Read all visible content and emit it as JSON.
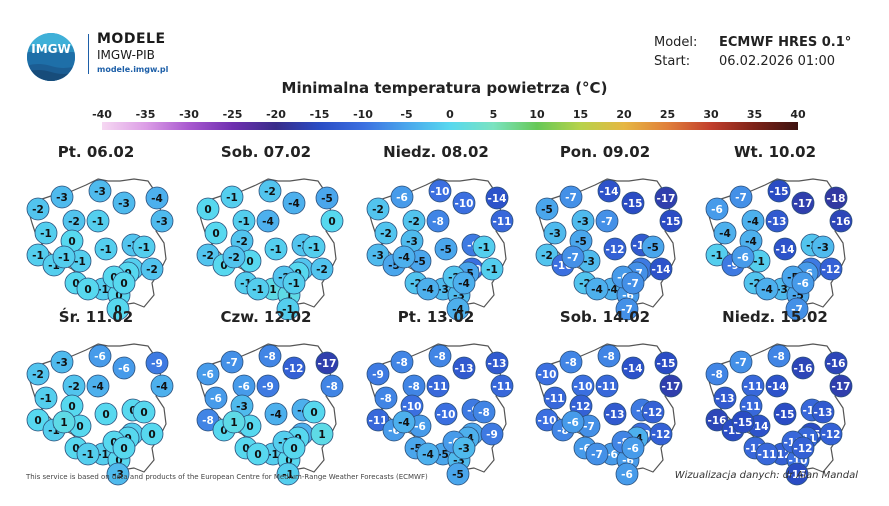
{
  "header": {
    "brand_name": "MODELE",
    "brand_org": "IMGW-PIB",
    "brand_url": "modele.imgw.pl",
    "logo_text": "IMGW",
    "model_label": "Model:",
    "model_value": "ECMWF HRES 0.1°",
    "start_label": "Start:",
    "start_value": "06.02.2026 01:00"
  },
  "title": "Minimalna temperatura powietrza (°C)",
  "scale": {
    "ticks": [
      "-40",
      "-35",
      "-30",
      "-25",
      "-20",
      "-15",
      "-10",
      "-5",
      "0",
      "5",
      "10",
      "15",
      "20",
      "25",
      "30",
      "35",
      "40"
    ],
    "stops": [
      [
        -40,
        "#f6d8f2"
      ],
      [
        -35,
        "#dc9ee6"
      ],
      [
        -30,
        "#a858cf"
      ],
      [
        -25,
        "#6f2fb0"
      ],
      [
        -20,
        "#382c8a"
      ],
      [
        -15,
        "#2a4cc4"
      ],
      [
        -10,
        "#3b6fe0"
      ],
      [
        -5,
        "#4aa6ec"
      ],
      [
        0,
        "#57d8ef"
      ],
      [
        5,
        "#7be3c0"
      ],
      [
        10,
        "#66c857"
      ],
      [
        15,
        "#b7d24a"
      ],
      [
        20,
        "#e6b743"
      ],
      [
        25,
        "#e07f3a"
      ],
      [
        30,
        "#c13e2c"
      ],
      [
        35,
        "#7d2218"
      ],
      [
        40,
        "#3d1210"
      ]
    ]
  },
  "panels": [
    {
      "day": "Pt. 06.02",
      "values": [
        -3,
        -3,
        -2,
        -3,
        -4,
        -2,
        -1,
        -3,
        -1,
        0,
        -1,
        -1,
        -2,
        -1,
        -1,
        -1,
        -2,
        0,
        -1,
        0,
        0,
        0,
        -1,
        -1,
        0,
        0,
        0
      ]
    },
    {
      "day": "Sob. 07.02",
      "values": [
        -1,
        -2,
        0,
        -4,
        -5,
        -1,
        -4,
        0,
        0,
        -2,
        -2,
        -1,
        -2,
        0,
        0,
        -2,
        -2,
        -1,
        1,
        1,
        0,
        -1,
        -2,
        -1,
        -2,
        -1,
        -1
      ]
    },
    {
      "day": "Niedz. 08.02",
      "values": [
        -6,
        -10,
        -2,
        -10,
        -14,
        -2,
        -8,
        -11,
        -2,
        -3,
        -3,
        -5,
        -9,
        -5,
        -5,
        -10,
        -1,
        -2,
        -3,
        -3,
        -5,
        -4,
        -4,
        -1,
        -2,
        -4,
        -4
      ]
    },
    {
      "day": "Pon. 09.02",
      "values": [
        -7,
        -14,
        -5,
        -15,
        -17,
        -3,
        -7,
        -15,
        -3,
        -5,
        -2,
        -12,
        -13,
        -10,
        -3,
        -9,
        -14,
        -2,
        -4,
        -6,
        -7,
        -4,
        -7,
        -5,
        -6,
        -7,
        -7
      ]
    },
    {
      "day": "Wt. 10.02",
      "values": [
        -7,
        -15,
        -6,
        -17,
        -18,
        -4,
        -13,
        -16,
        -4,
        -4,
        -1,
        -14,
        -2,
        -9,
        -1,
        -9,
        -12,
        -2,
        -3,
        -5,
        -6,
        -4,
        -6,
        -3,
        -5,
        -6,
        -7
      ]
    },
    {
      "day": "Śr. 11.02",
      "values": [
        -3,
        -6,
        -2,
        -6,
        -9,
        -2,
        -4,
        -4,
        -1,
        0,
        0,
        0,
        0,
        -1,
        0,
        -1,
        0,
        0,
        -1,
        0,
        0,
        -1,
        1,
        0,
        0,
        0,
        -3
      ]
    },
    {
      "day": "Czw. 12.02",
      "values": [
        -7,
        -8,
        -6,
        -12,
        -17,
        -6,
        -9,
        -8,
        -6,
        -3,
        -8,
        -4,
        -4,
        0,
        0,
        -4,
        1,
        0,
        -1,
        0,
        0,
        0,
        1,
        0,
        -1,
        0,
        -1
      ]
    },
    {
      "day": "Pt. 13.02",
      "values": [
        -8,
        -8,
        -9,
        -13,
        -13,
        -8,
        -11,
        -11,
        -8,
        -10,
        -11,
        -10,
        -9,
        -6,
        -6,
        -5,
        -9,
        -5,
        -5,
        -3,
        -4,
        -4,
        -4,
        -8,
        -6,
        -3,
        -5
      ]
    },
    {
      "day": "Sob. 14.02",
      "values": [
        -8,
        -8,
        -10,
        -14,
        -15,
        -10,
        -11,
        -17,
        -11,
        -12,
        -10,
        -13,
        -9,
        -8,
        -7,
        -10,
        -12,
        -6,
        -6,
        -6,
        -4,
        -7,
        -6,
        -12,
        -8,
        -6,
        -6
      ]
    },
    {
      "day": "Niedz. 15.02",
      "values": [
        -7,
        -8,
        -8,
        -16,
        -16,
        -11,
        -14,
        -17,
        -13,
        -11,
        -16,
        -15,
        -11,
        -15,
        -14,
        -15,
        -12,
        -11,
        -12,
        -10,
        -11,
        -11,
        -15,
        -13,
        -11,
        -12,
        -15
      ]
    }
  ],
  "footer": {
    "source": "This service is based on data and products of the European Centre for Medium-Range Weather Forecasts (ECMWF)",
    "credit": "Wizualizacja danych: dr Alan Mandal"
  }
}
